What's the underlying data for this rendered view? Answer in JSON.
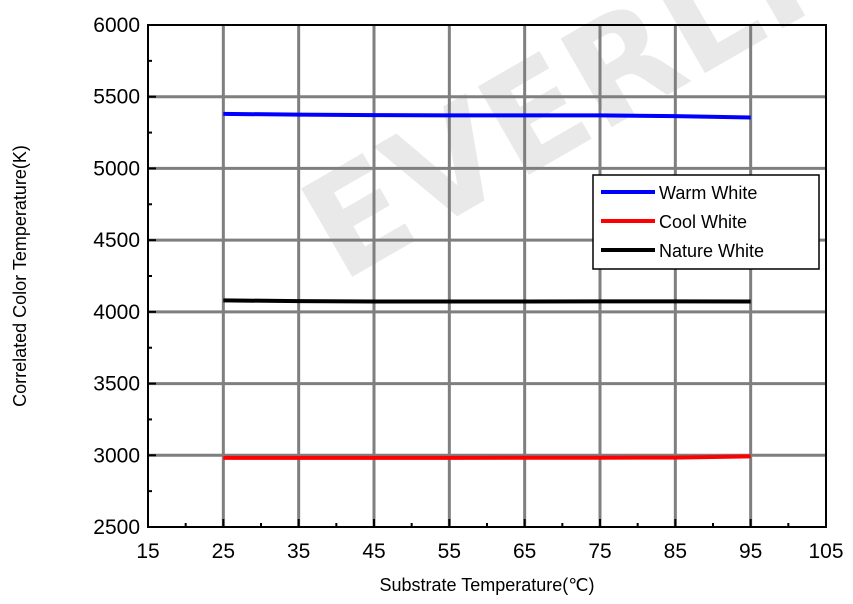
{
  "watermark": "EVERLIGHT",
  "chart_data": {
    "type": "line",
    "title": "",
    "xlabel": "Substrate Temperature(℃)",
    "ylabel": "Correlated Color Temperature(K)",
    "xlim": [
      15,
      105
    ],
    "ylim": [
      2500,
      6000
    ],
    "xticks": [
      "15",
      "25",
      "35",
      "45",
      "55",
      "65",
      "75",
      "85",
      "95",
      "105"
    ],
    "yticks": [
      "2500",
      "3000",
      "3500",
      "4000",
      "4500",
      "5000",
      "5500",
      "6000"
    ],
    "grid": true,
    "legend_position": "right",
    "x": [
      25,
      35,
      45,
      55,
      65,
      75,
      85,
      95
    ],
    "series": [
      {
        "name": "Warm White",
        "color": "#0000ff",
        "values": [
          5380,
          5375,
          5372,
          5370,
          5370,
          5370,
          5365,
          5355
        ]
      },
      {
        "name": "Cool White",
        "color": "#ff0000",
        "values": [
          2982,
          2982,
          2982,
          2982,
          2983,
          2983,
          2984,
          2992
        ]
      },
      {
        "name": "Nature White",
        "color": "#000000",
        "values": [
          4080,
          4075,
          4072,
          4072,
          4072,
          4073,
          4073,
          4072
        ]
      }
    ]
  }
}
